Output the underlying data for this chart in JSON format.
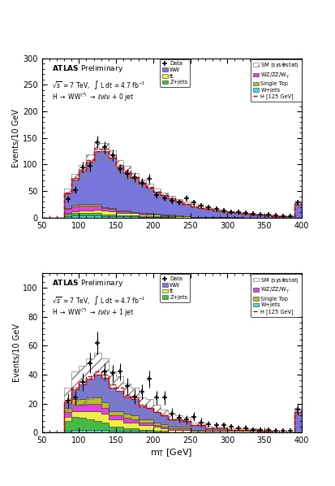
{
  "bin_edges": [
    50,
    60,
    70,
    80,
    90,
    100,
    110,
    120,
    130,
    140,
    150,
    160,
    170,
    180,
    190,
    200,
    210,
    220,
    230,
    240,
    250,
    260,
    270,
    280,
    290,
    300,
    310,
    320,
    330,
    340,
    350,
    360,
    370,
    380,
    390,
    400
  ],
  "top_panel": {
    "ylim": [
      0,
      300
    ],
    "yticks": [
      0,
      50,
      100,
      150,
      200,
      250,
      300
    ],
    "ylabel": "Events/10 GeV",
    "jet_label": "0 jet",
    "WW": [
      0,
      0,
      0,
      28,
      48,
      62,
      80,
      100,
      105,
      95,
      82,
      72,
      63,
      55,
      48,
      41,
      36,
      31,
      27,
      23,
      20,
      17,
      15,
      13,
      11,
      9,
      8,
      7,
      6,
      5,
      4,
      3,
      2,
      2,
      25
    ],
    "ttbar": [
      0,
      0,
      0,
      2,
      3,
      5,
      6,
      7,
      7,
      6,
      5,
      5,
      4,
      4,
      3,
      3,
      2,
      2,
      2,
      2,
      1,
      1,
      1,
      1,
      1,
      1,
      1,
      0,
      0,
      0,
      0,
      0,
      0,
      0,
      0
    ],
    "Zjets": [
      0,
      0,
      0,
      4,
      5,
      4,
      4,
      4,
      3,
      3,
      2,
      2,
      2,
      1,
      1,
      1,
      1,
      1,
      0,
      0,
      0,
      0,
      0,
      0,
      0,
      0,
      0,
      0,
      0,
      0,
      0,
      0,
      0,
      0,
      0
    ],
    "WZ_ZZ_Wgam": [
      0,
      0,
      0,
      7,
      9,
      9,
      8,
      7,
      5,
      4,
      3,
      3,
      2,
      2,
      2,
      1,
      1,
      1,
      1,
      0,
      0,
      0,
      0,
      0,
      0,
      0,
      0,
      0,
      0,
      0,
      0,
      0,
      0,
      0,
      0
    ],
    "SingleTop": [
      0,
      0,
      0,
      2,
      3,
      3,
      3,
      3,
      2,
      2,
      2,
      2,
      1,
      1,
      1,
      1,
      1,
      1,
      1,
      1,
      0,
      0,
      0,
      0,
      0,
      0,
      0,
      0,
      0,
      0,
      0,
      0,
      0,
      0,
      0
    ],
    "Wjets": [
      0,
      0,
      0,
      3,
      4,
      4,
      4,
      4,
      3,
      3,
      2,
      2,
      2,
      1,
      1,
      1,
      1,
      0,
      0,
      0,
      0,
      0,
      0,
      0,
      0,
      0,
      0,
      0,
      0,
      0,
      0,
      0,
      0,
      0,
      0
    ],
    "Higgs": [
      0,
      0,
      0,
      1,
      2,
      3,
      4,
      5,
      5,
      4,
      3,
      3,
      2,
      2,
      1,
      1,
      1,
      0,
      0,
      0,
      0,
      0,
      0,
      0,
      0,
      0,
      0,
      0,
      0,
      0,
      0,
      0,
      0,
      0,
      0
    ],
    "data": [
      0,
      0,
      0,
      35,
      52,
      95,
      97,
      142,
      132,
      117,
      92,
      82,
      76,
      66,
      73,
      42,
      37,
      32,
      29,
      37,
      28,
      22,
      19,
      16,
      13,
      11,
      10,
      9,
      7,
      6,
      5,
      4,
      3,
      2,
      28
    ],
    "data_err": [
      0,
      0,
      0,
      6,
      7,
      10,
      10,
      12,
      11,
      11,
      9,
      9,
      9,
      8,
      9,
      6,
      6,
      6,
      5,
      6,
      5,
      5,
      4,
      4,
      4,
      3,
      3,
      3,
      3,
      2,
      2,
      2,
      2,
      1,
      5
    ],
    "sm_total": [
      0,
      0,
      0,
      46,
      72,
      87,
      105,
      125,
      125,
      113,
      96,
      86,
      74,
      64,
      56,
      48,
      41,
      36,
      31,
      26,
      22,
      19,
      16,
      14,
      12,
      10,
      9,
      7,
      6,
      5,
      4,
      3,
      2,
      2,
      25
    ],
    "sm_err": [
      0,
      0,
      0,
      8,
      10,
      12,
      14,
      16,
      16,
      14,
      12,
      11,
      10,
      8,
      8,
      7,
      6,
      5,
      4,
      4,
      3,
      3,
      2,
      2,
      2,
      2,
      1,
      1,
      1,
      1,
      1,
      0,
      0,
      0,
      4
    ]
  },
  "bottom_panel": {
    "ylim": [
      0,
      110
    ],
    "yticks": [
      0,
      20,
      40,
      60,
      80,
      100
    ],
    "ylabel": "Events/10 GeV",
    "jet_label": "1 jet",
    "WW": [
      0,
      0,
      0,
      4,
      7,
      10,
      13,
      16,
      17,
      16,
      14,
      12,
      11,
      9,
      8,
      7,
      6,
      5,
      5,
      4,
      3,
      3,
      2,
      2,
      2,
      1,
      1,
      1,
      1,
      1,
      1,
      0,
      0,
      0,
      14
    ],
    "ttbar": [
      0,
      0,
      0,
      3,
      4,
      5,
      6,
      7,
      6,
      5,
      5,
      4,
      4,
      3,
      3,
      3,
      2,
      2,
      2,
      2,
      1,
      1,
      1,
      1,
      1,
      1,
      1,
      1,
      1,
      0,
      0,
      0,
      0,
      0,
      0
    ],
    "Zjets": [
      0,
      0,
      0,
      7,
      9,
      8,
      7,
      6,
      5,
      3,
      3,
      2,
      2,
      1,
      1,
      1,
      1,
      0,
      0,
      0,
      0,
      0,
      0,
      0,
      0,
      0,
      0,
      0,
      0,
      0,
      0,
      0,
      0,
      0,
      0
    ],
    "WZ_ZZ_Wgam": [
      0,
      0,
      0,
      3,
      4,
      4,
      5,
      5,
      4,
      3,
      3,
      3,
      2,
      2,
      2,
      1,
      1,
      1,
      1,
      1,
      0,
      0,
      0,
      0,
      0,
      0,
      0,
      0,
      0,
      0,
      0,
      0,
      0,
      0,
      0
    ],
    "SingleTop": [
      0,
      0,
      0,
      3,
      4,
      4,
      4,
      4,
      4,
      3,
      3,
      3,
      3,
      2,
      2,
      2,
      2,
      1,
      1,
      1,
      1,
      1,
      0,
      0,
      0,
      0,
      0,
      0,
      0,
      0,
      0,
      0,
      0,
      0,
      0
    ],
    "Wjets": [
      0,
      0,
      0,
      1,
      2,
      2,
      2,
      2,
      2,
      1,
      1,
      1,
      1,
      1,
      1,
      0,
      0,
      0,
      0,
      0,
      0,
      0,
      0,
      0,
      0,
      0,
      0,
      0,
      0,
      0,
      0,
      0,
      0,
      0,
      0
    ],
    "Higgs": [
      0,
      0,
      0,
      1,
      1,
      2,
      2,
      2,
      2,
      2,
      2,
      1,
      1,
      1,
      0,
      0,
      0,
      0,
      0,
      0,
      0,
      0,
      0,
      0,
      0,
      0,
      0,
      0,
      0,
      0,
      0,
      0,
      0,
      0,
      0
    ],
    "data": [
      0,
      0,
      0,
      22,
      24,
      35,
      48,
      62,
      42,
      41,
      42,
      32,
      25,
      28,
      37,
      24,
      24,
      13,
      10,
      9,
      11,
      7,
      6,
      5,
      5,
      4,
      3,
      3,
      2,
      2,
      2,
      1,
      1,
      1,
      16
    ],
    "data_err": [
      0,
      0,
      0,
      5,
      5,
      6,
      7,
      8,
      6,
      6,
      6,
      6,
      5,
      5,
      6,
      5,
      5,
      4,
      3,
      3,
      3,
      3,
      2,
      2,
      2,
      2,
      2,
      2,
      1,
      1,
      1,
      1,
      1,
      1,
      4
    ],
    "sm_total": [
      0,
      0,
      0,
      21,
      30,
      33,
      37,
      40,
      38,
      31,
      29,
      25,
      23,
      18,
      17,
      14,
      12,
      9,
      9,
      8,
      5,
      5,
      3,
      3,
      3,
      2,
      2,
      2,
      2,
      1,
      1,
      1,
      0,
      0,
      14
    ],
    "sm_err": [
      0,
      0,
      0,
      10,
      12,
      13,
      14,
      15,
      13,
      11,
      10,
      9,
      8,
      6,
      6,
      5,
      4,
      4,
      3,
      3,
      2,
      2,
      1,
      1,
      1,
      1,
      1,
      1,
      1,
      0,
      0,
      0,
      0,
      0,
      3
    ]
  },
  "colors": {
    "WW": "#7777dd",
    "ttbar": "#eeee44",
    "Zjets": "#44bb44",
    "WZ_ZZ_Wgam": "#dd44dd",
    "SingleTop": "#bbbb22",
    "Wjets": "#44dddd",
    "Higgs": "#cc0000"
  },
  "xmin": 50,
  "xmax": 400,
  "xlabel": "m_{T} [GeV]"
}
